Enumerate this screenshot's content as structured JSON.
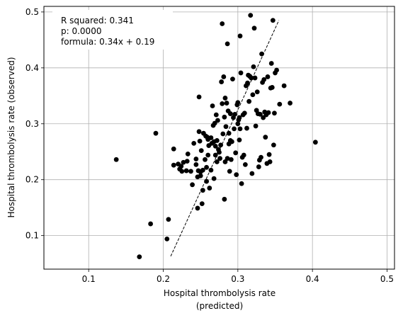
{
  "chart_data": {
    "type": "scatter",
    "title": "",
    "xlabel": [
      "Hospital thrombolysis rate",
      "(predicted)"
    ],
    "ylabel": "Hospital thrombolysis rate (observed)",
    "xlim": [
      0.04,
      0.51
    ],
    "ylim": [
      0.04,
      0.51
    ],
    "xticks": [
      0.1,
      0.2,
      0.3,
      0.4,
      0.5
    ],
    "yticks": [
      0.1,
      0.2,
      0.3,
      0.4,
      0.5
    ],
    "xtick_labels": [
      "0.1",
      "0.2",
      "0.3",
      "0.4",
      "0.5"
    ],
    "ytick_labels": [
      "0.1",
      "0.2",
      "0.3",
      "0.4",
      "0.5"
    ],
    "grid": true,
    "point_color": "#000000",
    "annotation": {
      "lines": [
        "R squared: 0.341",
        "p: 0.0000",
        "formula: 0.34x + 0.19"
      ],
      "placement": "top-left"
    },
    "fit_line": {
      "style": "dashed",
      "color": "#000000",
      "x": [
        0.21,
        0.355
      ],
      "y": [
        0.063,
        0.485
      ]
    },
    "points": [
      [
        0.168,
        0.062
      ],
      [
        0.137,
        0.236
      ],
      [
        0.183,
        0.121
      ],
      [
        0.19,
        0.283
      ],
      [
        0.205,
        0.094
      ],
      [
        0.207,
        0.129
      ],
      [
        0.214,
        0.255
      ],
      [
        0.214,
        0.226
      ],
      [
        0.22,
        0.228
      ],
      [
        0.222,
        0.219
      ],
      [
        0.224,
        0.224
      ],
      [
        0.225,
        0.215
      ],
      [
        0.227,
        0.231
      ],
      [
        0.231,
        0.216
      ],
      [
        0.232,
        0.233
      ],
      [
        0.233,
        0.246
      ],
      [
        0.237,
        0.215
      ],
      [
        0.239,
        0.191
      ],
      [
        0.241,
        0.265
      ],
      [
        0.244,
        0.237
      ],
      [
        0.244,
        0.227
      ],
      [
        0.246,
        0.149
      ],
      [
        0.246,
        0.205
      ],
      [
        0.247,
        0.216
      ],
      [
        0.248,
        0.286
      ],
      [
        0.248,
        0.348
      ],
      [
        0.249,
        0.269
      ],
      [
        0.25,
        0.214
      ],
      [
        0.25,
        0.207
      ],
      [
        0.251,
        0.252
      ],
      [
        0.252,
        0.157
      ],
      [
        0.253,
        0.181
      ],
      [
        0.253,
        0.217
      ],
      [
        0.254,
        0.283
      ],
      [
        0.256,
        0.236
      ],
      [
        0.257,
        0.278
      ],
      [
        0.258,
        0.197
      ],
      [
        0.258,
        0.222
      ],
      [
        0.259,
        0.276
      ],
      [
        0.26,
        0.244
      ],
      [
        0.261,
        0.261
      ],
      [
        0.262,
        0.185
      ],
      [
        0.264,
        0.275
      ],
      [
        0.264,
        0.217
      ],
      [
        0.265,
        0.265
      ],
      [
        0.266,
        0.332
      ],
      [
        0.267,
        0.297
      ],
      [
        0.268,
        0.202
      ],
      [
        0.268,
        0.268
      ],
      [
        0.269,
        0.301
      ],
      [
        0.27,
        0.244
      ],
      [
        0.271,
        0.316
      ],
      [
        0.272,
        0.232
      ],
      [
        0.272,
        0.27
      ],
      [
        0.273,
        0.306
      ],
      [
        0.274,
        0.254
      ],
      [
        0.275,
        0.249
      ],
      [
        0.276,
        0.238
      ],
      [
        0.277,
        0.262
      ],
      [
        0.278,
        0.375
      ],
      [
        0.279,
        0.336
      ],
      [
        0.279,
        0.479
      ],
      [
        0.28,
        0.282
      ],
      [
        0.281,
        0.384
      ],
      [
        0.282,
        0.312
      ],
      [
        0.282,
        0.165
      ],
      [
        0.283,
        0.232
      ],
      [
        0.283,
        0.346
      ],
      [
        0.284,
        0.295
      ],
      [
        0.285,
        0.337
      ],
      [
        0.286,
        0.238
      ],
      [
        0.286,
        0.443
      ],
      [
        0.287,
        0.323
      ],
      [
        0.288,
        0.283
      ],
      [
        0.288,
        0.264
      ],
      [
        0.289,
        0.215
      ],
      [
        0.29,
        0.318
      ],
      [
        0.291,
        0.236
      ],
      [
        0.292,
        0.268
      ],
      [
        0.293,
        0.38
      ],
      [
        0.294,
        0.311
      ],
      [
        0.295,
        0.291
      ],
      [
        0.296,
        0.317
      ],
      [
        0.297,
        0.248
      ],
      [
        0.298,
        0.209
      ],
      [
        0.299,
        0.334
      ],
      [
        0.3,
        0.338
      ],
      [
        0.301,
        0.307
      ],
      [
        0.302,
        0.311
      ],
      [
        0.302,
        0.271
      ],
      [
        0.303,
        0.291
      ],
      [
        0.303,
        0.457
      ],
      [
        0.304,
        0.391
      ],
      [
        0.305,
        0.193
      ],
      [
        0.306,
        0.24
      ],
      [
        0.307,
        0.316
      ],
      [
        0.308,
        0.244
      ],
      [
        0.309,
        0.319
      ],
      [
        0.31,
        0.227
      ],
      [
        0.311,
        0.368
      ],
      [
        0.312,
        0.292
      ],
      [
        0.313,
        0.373
      ],
      [
        0.314,
        0.387
      ],
      [
        0.315,
        0.34
      ],
      [
        0.316,
        0.385
      ],
      [
        0.317,
        0.494
      ],
      [
        0.318,
        0.382
      ],
      [
        0.319,
        0.211
      ],
      [
        0.32,
        0.352
      ],
      [
        0.321,
        0.402
      ],
      [
        0.322,
        0.471
      ],
      [
        0.323,
        0.382
      ],
      [
        0.324,
        0.296
      ],
      [
        0.325,
        0.324
      ],
      [
        0.326,
        0.357
      ],
      [
        0.327,
        0.318
      ],
      [
        0.328,
        0.223
      ],
      [
        0.329,
        0.235
      ],
      [
        0.33,
        0.317
      ],
      [
        0.331,
        0.24
      ],
      [
        0.332,
        0.425
      ],
      [
        0.333,
        0.374
      ],
      [
        0.334,
        0.311
      ],
      [
        0.335,
        0.379
      ],
      [
        0.336,
        0.321
      ],
      [
        0.337,
        0.276
      ],
      [
        0.338,
        0.316
      ],
      [
        0.339,
        0.229
      ],
      [
        0.34,
        0.384
      ],
      [
        0.341,
        0.32
      ],
      [
        0.342,
        0.245
      ],
      [
        0.343,
        0.232
      ],
      [
        0.344,
        0.364
      ],
      [
        0.345,
        0.408
      ],
      [
        0.346,
        0.365
      ],
      [
        0.347,
        0.485
      ],
      [
        0.348,
        0.262
      ],
      [
        0.349,
        0.319
      ],
      [
        0.35,
        0.391
      ],
      [
        0.352,
        0.396
      ],
      [
        0.356,
        0.335
      ],
      [
        0.362,
        0.368
      ],
      [
        0.37,
        0.337
      ],
      [
        0.404,
        0.267
      ],
      [
        0.26,
        0.272
      ],
      [
        0.27,
        0.26
      ],
      [
        0.29,
        0.27
      ],
      [
        0.3,
        0.3
      ]
    ]
  }
}
